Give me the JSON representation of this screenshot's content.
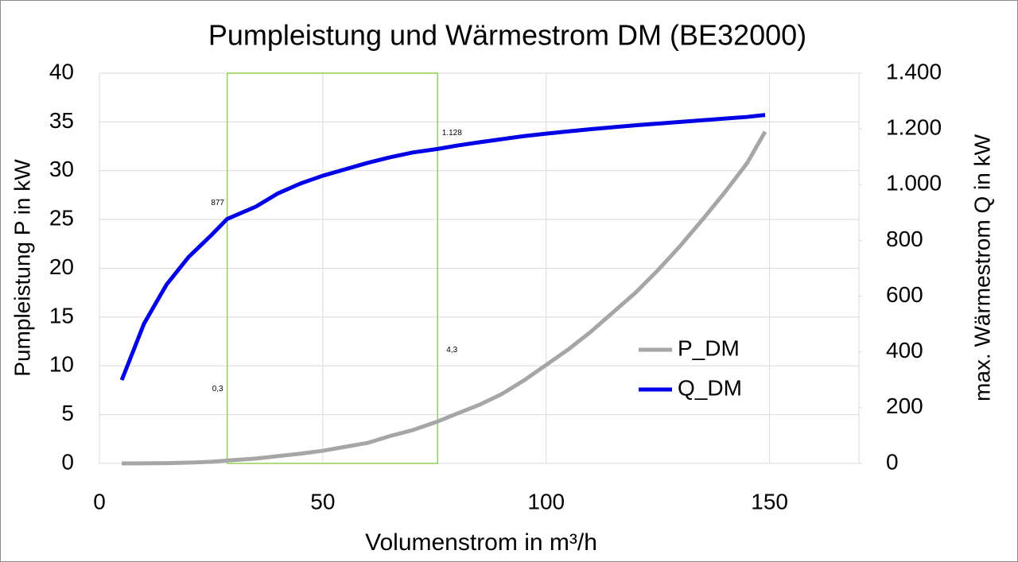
{
  "chart_data": {
    "type": "line",
    "title": "Pumpleistung und Wärmestrom DM (BE32000)",
    "x_label": "Volumenstrom in m³/h",
    "y_label": "Pumpleistung P in kW",
    "y2_label": "max. Wärmestrom Q  in kW",
    "x": [
      5,
      10,
      15,
      20,
      25,
      28.6,
      35,
      40,
      45,
      50,
      55,
      60,
      65,
      70,
      75.7,
      80,
      85,
      90,
      95,
      100,
      105,
      110,
      115,
      120,
      125,
      130,
      135,
      140,
      145,
      149
    ],
    "series": [
      {
        "name": "P_DM",
        "color": "#a6a6a6",
        "axis": "y",
        "values": [
          0,
          0.01,
          0.03,
          0.08,
          0.17,
          0.3,
          0.5,
          0.75,
          1.0,
          1.3,
          1.7,
          2.1,
          2.8,
          3.4,
          4.3,
          5.1,
          6.0,
          7.1,
          8.5,
          10.1,
          11.7,
          13.5,
          15.5,
          17.5,
          19.8,
          22.3,
          25,
          27.8,
          30.8,
          34
        ]
      },
      {
        "name": "Q_DM",
        "color": "#0000e6",
        "axis": "y2",
        "values": [
          299,
          502,
          641,
          741,
          818,
          877,
          921,
          969,
          1004,
          1032,
          1055,
          1078,
          1098,
          1115,
          1128,
          1140,
          1152,
          1163,
          1174,
          1183,
          1191,
          1199,
          1206,
          1213,
          1219,
          1225,
          1231,
          1237,
          1243,
          1250
        ]
      }
    ],
    "annotations": [
      {
        "series": 0,
        "point": 5,
        "label": "0,3"
      },
      {
        "series": 1,
        "point": 5,
        "label": "877"
      },
      {
        "series": 0,
        "point": 14,
        "label": "4,3"
      },
      {
        "series": 1,
        "point": 14,
        "label": "1.128"
      }
    ],
    "highlight": {
      "x": [
        28.6,
        75.7
      ],
      "color": "#92d050"
    },
    "xlim": [
      0,
      170
    ],
    "xticks": [
      0,
      50,
      100,
      150
    ],
    "ylim": [
      0,
      40
    ],
    "yticks": [
      0,
      5,
      10,
      15,
      20,
      25,
      30,
      35,
      40
    ],
    "y2lim": [
      0,
      1400
    ],
    "y2ticks": [
      0,
      200,
      400,
      600,
      800,
      {
        "value": 1000,
        "label": "1.000"
      },
      {
        "value": 1200,
        "label": "1.200"
      },
      {
        "value": 1400,
        "label": "1.400"
      }
    ],
    "grid": true,
    "legend": "lower right"
  }
}
